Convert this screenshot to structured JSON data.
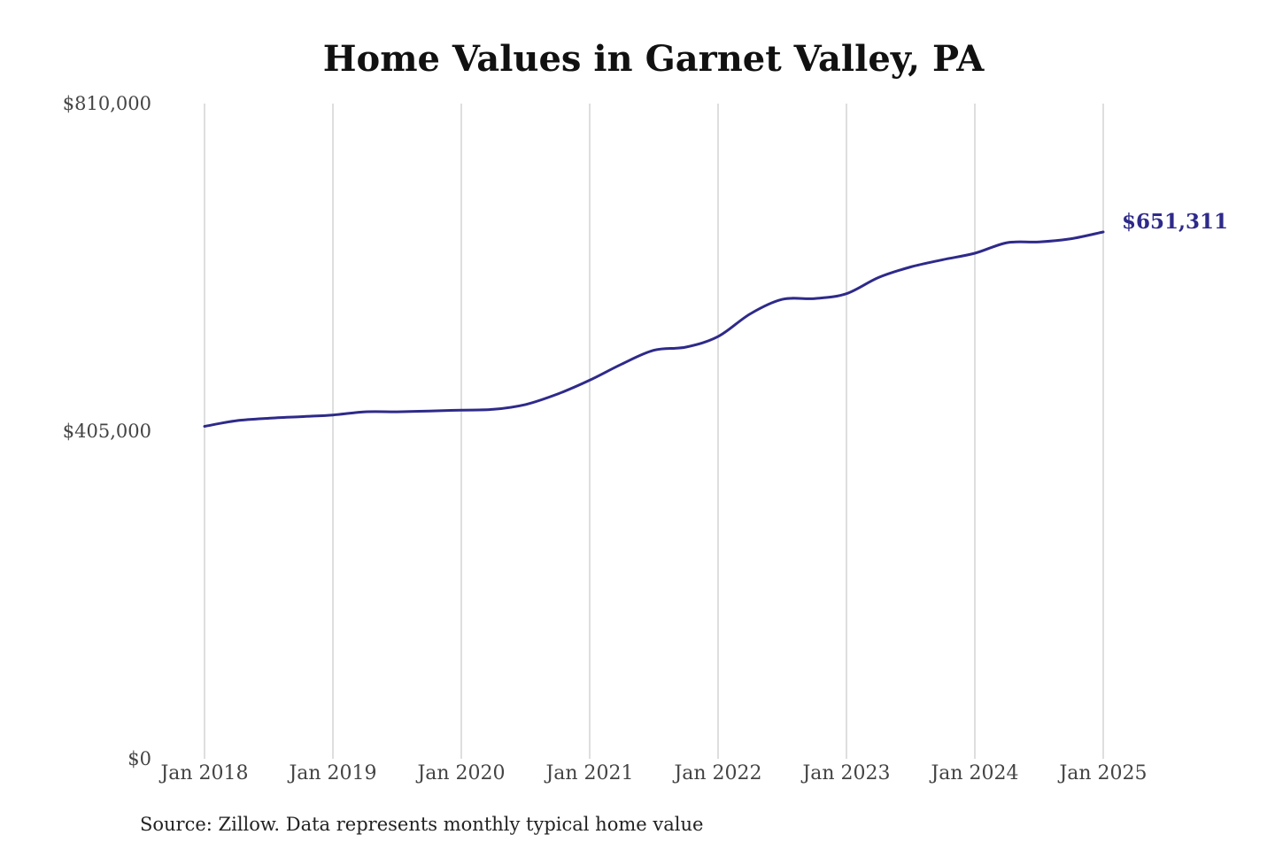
{
  "chart_data": {
    "type": "line",
    "title": "Home Values in Garnet Valley, PA",
    "xlabel": "",
    "ylabel": "",
    "ylim": [
      0,
      810000
    ],
    "y_ticks": [
      "$810,000",
      "$405,000",
      "$0"
    ],
    "y_tick_values": [
      810000,
      405000,
      0
    ],
    "x_ticks": [
      "Jan 2018",
      "Jan 2019",
      "Jan 2020",
      "Jan 2021",
      "Jan 2022",
      "Jan 2023",
      "Jan 2024",
      "Jan 2025"
    ],
    "x_tick_values": [
      2018,
      2019,
      2020,
      2021,
      2022,
      2023,
      2024,
      2025
    ],
    "grid": "vertical",
    "series": [
      {
        "color": "#2e2a8a",
        "x": [
          2018.0,
          2018.25,
          2018.5,
          2018.75,
          2019.0,
          2019.25,
          2019.5,
          2019.75,
          2020.0,
          2020.25,
          2020.5,
          2020.75,
          2021.0,
          2021.25,
          2021.5,
          2021.75,
          2022.0,
          2022.25,
          2022.5,
          2022.75,
          2023.0,
          2023.25,
          2023.5,
          2023.75,
          2024.0,
          2024.25,
          2024.5,
          2024.75,
          2025.0
        ],
        "values": [
          411000,
          418000,
          421000,
          423000,
          425000,
          429000,
          429000,
          430000,
          431000,
          432000,
          438000,
          451000,
          468000,
          488000,
          505000,
          509000,
          522000,
          550000,
          568000,
          569000,
          575000,
          595000,
          608000,
          617000,
          625000,
          638000,
          639000,
          643000,
          651311
        ]
      }
    ],
    "end_label": "$651,311",
    "source": "Source: Zillow. Data represents monthly typical home value"
  }
}
